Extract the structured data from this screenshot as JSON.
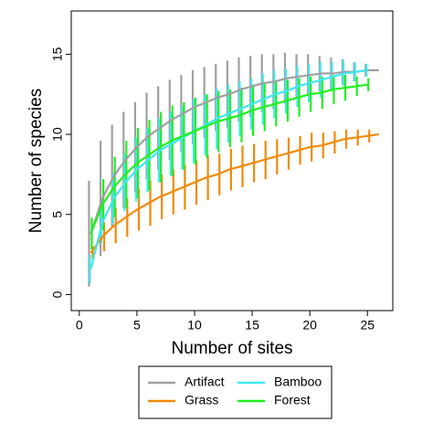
{
  "chart_data": {
    "type": "line",
    "xlabel": "Number of sites",
    "ylabel": "Number of species",
    "xlim": [
      -0.7,
      27.2
    ],
    "ylim": [
      -1,
      17.7
    ],
    "xticks": [
      0,
      5,
      10,
      15,
      20,
      25
    ],
    "yticks": [
      0,
      5,
      10,
      15
    ],
    "legend": "bottom",
    "series": [
      {
        "name": "Artifact",
        "color": "#a0a0a0",
        "x": [
          1,
          2,
          3,
          4,
          5,
          6,
          7,
          8,
          9,
          10,
          11,
          12,
          13,
          14,
          15,
          16,
          17,
          18,
          19,
          20,
          21,
          22,
          23,
          24,
          25,
          26
        ],
        "values": [
          3.8,
          6.0,
          7.4,
          8.4,
          9.2,
          9.9,
          10.4,
          10.9,
          11.3,
          11.7,
          12.0,
          12.3,
          12.5,
          12.8,
          13.0,
          13.2,
          13.3,
          13.5,
          13.6,
          13.7,
          13.8,
          13.8,
          13.9,
          13.9,
          14.0,
          14.0
        ],
        "errors": [
          3.3,
          3.6,
          3.2,
          3.0,
          2.8,
          2.7,
          2.6,
          2.5,
          2.4,
          2.3,
          2.2,
          2.1,
          2.1,
          2.0,
          1.9,
          1.8,
          1.7,
          1.6,
          1.4,
          1.3,
          1.1,
          1.0,
          0.8,
          0.6,
          0.4,
          null
        ]
      },
      {
        "name": "Grass",
        "color": "#f08a0a",
        "x": [
          1,
          2,
          3,
          4,
          5,
          6,
          7,
          8,
          9,
          10,
          11,
          12,
          13,
          14,
          15,
          16,
          17,
          18,
          19,
          20,
          21,
          22,
          23,
          24,
          25,
          26
        ],
        "values": [
          2.6,
          3.6,
          4.3,
          4.8,
          5.3,
          5.7,
          6.1,
          6.4,
          6.7,
          7.0,
          7.3,
          7.5,
          7.8,
          8.0,
          8.2,
          8.4,
          8.6,
          8.8,
          9.0,
          9.2,
          9.3,
          9.5,
          9.7,
          9.8,
          9.9,
          10.0
        ],
        "errors": [
          0.4,
          0.9,
          1.1,
          1.2,
          1.3,
          1.4,
          1.4,
          1.4,
          1.4,
          1.4,
          1.4,
          1.3,
          1.3,
          1.3,
          1.2,
          1.2,
          1.1,
          1.0,
          0.9,
          0.9,
          0.8,
          0.7,
          0.6,
          0.5,
          0.4,
          null
        ]
      },
      {
        "name": "Bamboo",
        "color": "#40e8f0",
        "x": [
          1,
          2,
          3,
          4,
          5,
          6,
          7,
          8,
          9,
          10,
          11,
          12,
          13,
          14,
          15,
          16,
          17,
          18,
          19,
          20,
          21,
          22,
          23,
          24,
          25
        ],
        "values": [
          1.6,
          4.5,
          6.0,
          7.0,
          7.8,
          8.4,
          9.0,
          9.4,
          9.8,
          10.2,
          10.6,
          11.0,
          11.3,
          11.6,
          11.9,
          12.2,
          12.5,
          12.7,
          13.0,
          13.2,
          13.4,
          13.6,
          13.8,
          13.9,
          14.0
        ],
        "errors": [
          0.9,
          1.3,
          1.6,
          1.8,
          2.0,
          2.0,
          2.0,
          2.0,
          2.0,
          2.0,
          1.9,
          1.9,
          1.8,
          1.7,
          1.6,
          1.6,
          1.5,
          1.4,
          1.3,
          1.2,
          1.1,
          0.9,
          0.8,
          0.6,
          0.4
        ]
      },
      {
        "name": "Forest",
        "color": "#22ee22",
        "x": [
          1,
          2,
          3,
          4,
          5,
          6,
          7,
          8,
          9,
          10,
          11,
          12,
          13,
          14,
          15,
          16,
          17,
          18,
          19,
          20,
          21,
          22,
          23,
          24,
          25
        ],
        "values": [
          3.8,
          5.6,
          6.7,
          7.5,
          8.2,
          8.7,
          9.2,
          9.6,
          9.9,
          10.2,
          10.5,
          10.8,
          11.0,
          11.2,
          11.5,
          11.7,
          11.9,
          12.1,
          12.3,
          12.5,
          12.6,
          12.8,
          12.9,
          13.0,
          13.1
        ],
        "errors": [
          1.0,
          1.6,
          1.9,
          2.1,
          2.2,
          2.2,
          2.2,
          2.2,
          2.1,
          2.1,
          2.0,
          1.9,
          1.8,
          1.7,
          1.6,
          1.5,
          1.4,
          1.3,
          1.2,
          1.1,
          1.0,
          0.9,
          0.8,
          0.6,
          0.4
        ]
      }
    ]
  }
}
